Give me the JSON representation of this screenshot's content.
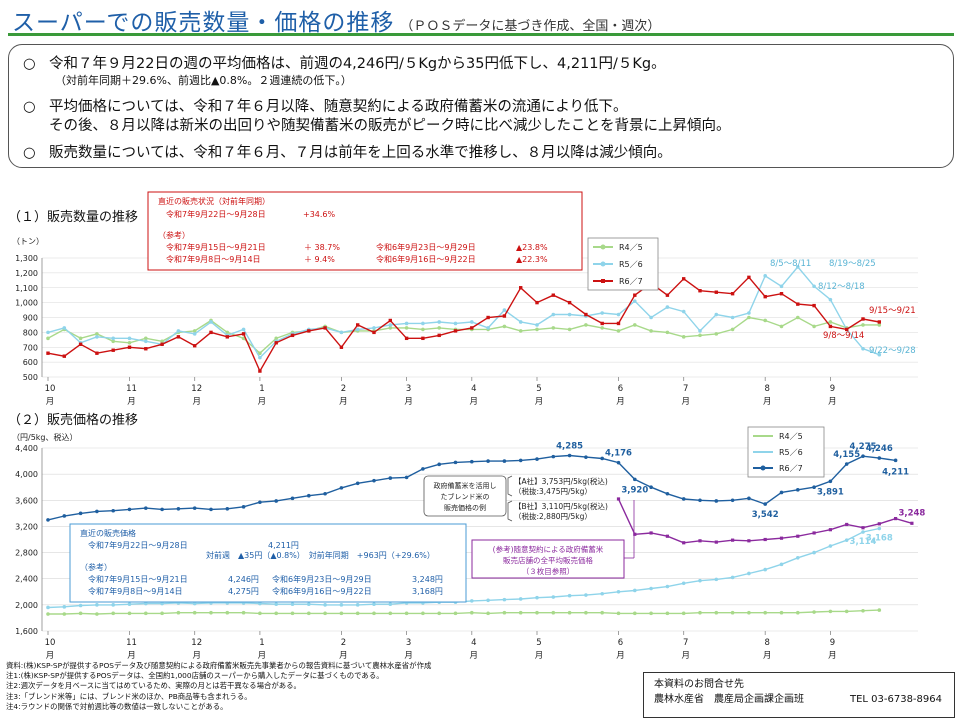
{
  "header": {
    "title": "スーパーでの販売数量・価格の推移",
    "subtitle": "（ＰＯＳデータに基づき作成、全国・週次）"
  },
  "summary": {
    "bullet_mark": "○",
    "items": [
      {
        "text": "令和７年９月22日の週の平均価格は、前週の4,246円/５Kgから35円低下し、4,211円/５Kg。",
        "note": "（対前年同期＋29.6%、前週比▲0.8%。２週連続の低下。）"
      },
      {
        "text": "平均価格については、令和７年６月以降、随意契約による政府備蓄米の流通により低下。",
        "text2": "その後、８月以降は新米の出回りや随契備蓄米の販売がピーク時に比べ減少したことを背景に上昇傾向。"
      },
      {
        "text": "販売数量については、令和７年６月、７月は前年を上回る水準で推移し、８月以降は減少傾向。"
      }
    ]
  },
  "section1": {
    "label": "（１）販売数量の推移",
    "unit": "（トン）"
  },
  "section2": {
    "label": "（２）販売価格の推移",
    "unit": "（円/5kg、税込）"
  },
  "volume_box": {
    "head": "直近の販売状況（対前年同期）",
    "row1_period": "令和7年9月22日～9月28日",
    "row1_value": "+34.6%",
    "ref_label": "（参考）",
    "ref_rows": [
      {
        "period": "令和7年9月15日～9月21日",
        "value": "＋ 38.7%",
        "prev_period": "令和6年9月23日～9月29日",
        "prev_value": "▲23.8%"
      },
      {
        "period": "令和7年9月8日～9月14日",
        "value": "＋ 9.4%",
        "prev_period": "令和6年9月16日～9月22日",
        "prev_value": "▲22.3%"
      }
    ]
  },
  "price_box": {
    "head": "直近の販売価格",
    "row1_period": "令和7年9月22日～9月28日",
    "row1_value": "4,211円",
    "change_text": "対前週　▲35円（▲0.8%）　対前年同期　+963円（+29.6%）",
    "ref_label": "（参考）",
    "ref_rows": [
      {
        "period": "令和7年9月15日～9月21日",
        "value": "4,246円",
        "prev_period": "令和6年9月23日～9月29日",
        "prev_value": "3,248円"
      },
      {
        "period": "令和7年9月8日～9月14日",
        "value": "4,275円",
        "prev_period": "令和6年9月16日～9月22日",
        "prev_value": "3,168円"
      }
    ]
  },
  "blend_box": {
    "lines": [
      "政府備蓄米を活用し",
      "たブレンド米の",
      "販売価格の例"
    ]
  },
  "company_box": {
    "a_line1": "【A社】3,753円/5kg(税込)",
    "a_line2": "（税抜:3,475円/5kg）",
    "b_line1": "【B社】3,110円/5kg(税込)",
    "b_line2": "（税抜:2,880円/5kg）"
  },
  "gov_box": {
    "lines": [
      "(参考)随意契約による政府備蓄米",
      "販売店舗の全平均販売価格",
      "（３枚目参照）"
    ]
  },
  "footer": {
    "notes": [
      "資料:(株)KSP-SPが提供するPOSデータ及び随意契約による政府備蓄米販売先事業者からの報告資料に基づいて農林水産省が作成",
      "注1:(株)KSP-SPが提供するPOSデータは、全国約1,000店舗のスーパーから購入したデータに基づくものである。",
      "注2:週次データを月ベースに当てはめているため、実際の月とは若干異なる場合がある。",
      "注3:「ブレンド米等」には、ブレンド米のほか、PB商品等も含まれうる。",
      "注4:ラウンドの関係で対前週比等の数値は一致しないことがある。"
    ],
    "contact_title": "本資料のお問合せ先",
    "contact_org": "農林水産省　農産局企画課企画班",
    "contact_tel": "TEL 03-6738-8964"
  },
  "chart_data": [
    {
      "type": "line",
      "title": "販売数量の推移",
      "ylabel": "（トン）",
      "ylim": [
        500,
        1300
      ],
      "yticks": [
        500,
        600,
        700,
        800,
        900,
        1000,
        1100,
        1200,
        1300
      ],
      "ytick_labels": [
        "500",
        "600",
        "700",
        "800",
        "900",
        "1,000",
        "1,100",
        "1,200",
        "1,300"
      ],
      "month_ticks": [
        {
          "month": "10",
          "unit": "月",
          "week": 0
        },
        {
          "month": "11",
          "unit": "月",
          "week": 5
        },
        {
          "month": "12",
          "unit": "月",
          "week": 9
        },
        {
          "month": "1",
          "unit": "月",
          "week": 13
        },
        {
          "month": "2",
          "unit": "月",
          "week": 18
        },
        {
          "month": "3",
          "unit": "月",
          "week": 22
        },
        {
          "month": "4",
          "unit": "月",
          "week": 26
        },
        {
          "month": "5",
          "unit": "月",
          "week": 30
        },
        {
          "month": "6",
          "unit": "月",
          "week": 35
        },
        {
          "month": "7",
          "unit": "月",
          "week": 39
        },
        {
          "month": "8",
          "unit": "月",
          "week": 44
        },
        {
          "month": "9",
          "unit": "月",
          "week": 48
        }
      ],
      "n_weeks": 52,
      "series": [
        {
          "name": "R4／5",
          "color": "#a8d98a",
          "values": [
            760,
            820,
            760,
            790,
            740,
            730,
            760,
            740,
            800,
            810,
            880,
            800,
            760,
            660,
            760,
            800,
            810,
            840,
            800,
            810,
            810,
            830,
            830,
            820,
            830,
            820,
            820,
            820,
            840,
            810,
            820,
            830,
            820,
            850,
            830,
            810,
            850,
            810,
            800,
            770,
            780,
            790,
            820,
            900,
            880,
            840,
            900,
            840,
            870,
            830,
            850,
            850
          ]
        },
        {
          "name": "R5／6",
          "color": "#8fd4ea",
          "values": [
            800,
            830,
            730,
            770,
            760,
            760,
            740,
            720,
            810,
            790,
            870,
            780,
            820,
            630,
            740,
            790,
            820,
            830,
            800,
            820,
            830,
            850,
            860,
            860,
            870,
            860,
            870,
            830,
            950,
            870,
            850,
            920,
            920,
            910,
            930,
            920,
            1010,
            900,
            970,
            940,
            810,
            920,
            900,
            930,
            1180,
            1110,
            1240,
            1110,
            1020,
            820,
            690,
            650
          ]
        },
        {
          "name": "R6／7",
          "color": "#cc1111",
          "values": [
            660,
            640,
            720,
            660,
            680,
            700,
            690,
            720,
            770,
            710,
            800,
            770,
            790,
            540,
            730,
            780,
            810,
            830,
            700,
            850,
            800,
            880,
            760,
            760,
            780,
            810,
            830,
            900,
            910,
            1100,
            1000,
            1050,
            1000,
            920,
            860,
            860,
            1050,
            1130,
            1050,
            1160,
            1080,
            1070,
            1060,
            1170,
            1040,
            1060,
            990,
            980,
            840,
            820,
            890,
            870
          ]
        }
      ],
      "annotations": [
        "8/5～8/11",
        "8/12～8/18",
        "8/19～8/25",
        "9/15～9/21",
        "9/8～9/14",
        "9/22～9/28"
      ]
    },
    {
      "type": "line",
      "title": "販売価格の推移",
      "ylabel": "（円/5kg、税込）",
      "ylim": [
        1600,
        4400
      ],
      "yticks": [
        1600,
        2000,
        2400,
        2800,
        3200,
        3600,
        4000,
        4400
      ],
      "ytick_labels": [
        "1,600",
        "2,000",
        "2,400",
        "2,800",
        "3,200",
        "3,600",
        "4,000",
        "4,400"
      ],
      "month_ticks": [
        {
          "month": "10",
          "unit": "月",
          "week": 0
        },
        {
          "month": "11",
          "unit": "月",
          "week": 5
        },
        {
          "month": "12",
          "unit": "月",
          "week": 9
        },
        {
          "month": "1",
          "unit": "月",
          "week": 13
        },
        {
          "month": "2",
          "unit": "月",
          "week": 18
        },
        {
          "month": "3",
          "unit": "月",
          "week": 22
        },
        {
          "month": "4",
          "unit": "月",
          "week": 26
        },
        {
          "month": "5",
          "unit": "月",
          "week": 30
        },
        {
          "month": "6",
          "unit": "月",
          "week": 35
        },
        {
          "month": "7",
          "unit": "月",
          "week": 39
        },
        {
          "month": "8",
          "unit": "月",
          "week": 44
        },
        {
          "month": "9",
          "unit": "月",
          "week": 48
        }
      ],
      "n_weeks": 52,
      "series": [
        {
          "name": "R4／5",
          "color": "#a8d98a",
          "values": [
            1860,
            1860,
            1870,
            1860,
            1870,
            1870,
            1870,
            1870,
            1880,
            1880,
            1880,
            1880,
            1880,
            1870,
            1870,
            1870,
            1870,
            1870,
            1870,
            1870,
            1870,
            1870,
            1870,
            1870,
            1870,
            1870,
            1880,
            1870,
            1880,
            1880,
            1880,
            1880,
            1880,
            1880,
            1880,
            1870,
            1870,
            1870,
            1870,
            1870,
            1880,
            1880,
            1880,
            1880,
            1880,
            1880,
            1880,
            1890,
            1900,
            1900,
            1910,
            1920
          ]
        },
        {
          "name": "R5／6",
          "color": "#8fd4ea",
          "values": [
            1960,
            1970,
            1990,
            2000,
            2000,
            2010,
            2020,
            2020,
            2030,
            2020,
            2030,
            2030,
            2030,
            2020,
            2010,
            2010,
            2010,
            2000,
            2000,
            2000,
            2010,
            2010,
            2030,
            2030,
            2040,
            2040,
            2060,
            2070,
            2080,
            2090,
            2110,
            2120,
            2140,
            2150,
            2170,
            2200,
            2220,
            2250,
            2280,
            2330,
            2370,
            2390,
            2420,
            2480,
            2540,
            2620,
            2720,
            2800,
            2900,
            2990,
            3114,
            3168
          ]
        },
        {
          "name": "R6／7",
          "color": "#1f5f9f",
          "values": [
            3300,
            3360,
            3400,
            3430,
            3440,
            3460,
            3480,
            3460,
            3470,
            3480,
            3460,
            3470,
            3500,
            3570,
            3590,
            3630,
            3670,
            3700,
            3790,
            3860,
            3900,
            3940,
            3950,
            4080,
            4150,
            4180,
            4190,
            4200,
            4200,
            4210,
            4230,
            4268,
            4285,
            4260,
            4240,
            4176,
            3920,
            3800,
            3700,
            3620,
            3600,
            3590,
            3600,
            3630,
            3542,
            3720,
            3760,
            3800,
            3891,
            4155,
            4275,
            4246,
            4211
          ]
        },
        {
          "name": "政府備蓄米（随意契約）",
          "color": "#8b2a9e",
          "start_week": 35,
          "values": [
            3620,
            3080,
            3100,
            3050,
            2950,
            2980,
            2960,
            2990,
            2980,
            3000,
            3020,
            3050,
            3100,
            3150,
            3230,
            3180,
            3240,
            3320,
            3248
          ]
        }
      ],
      "data_labels": [
        {
          "series": 2,
          "week": 32,
          "text": "4,285"
        },
        {
          "series": 2,
          "week": 35,
          "text": "4,176"
        },
        {
          "series": 2,
          "week": 36,
          "text": "3,920"
        },
        {
          "series": 2,
          "week": 44,
          "text": "3,542"
        },
        {
          "series": 2,
          "week": 48,
          "text": "3,891"
        },
        {
          "series": 2,
          "week": 49,
          "text": "4,155"
        },
        {
          "series": 2,
          "week": 50,
          "text": "4,275"
        },
        {
          "series": 2,
          "week": 51,
          "text": "4,246"
        },
        {
          "series": 2,
          "week": 52,
          "text": "4,211"
        },
        {
          "series": 1,
          "week": 50,
          "text": "3,114"
        },
        {
          "series": 1,
          "week": 51,
          "text": "3,168"
        },
        {
          "series": 3,
          "week": 53,
          "text": "3,248"
        }
      ]
    }
  ]
}
